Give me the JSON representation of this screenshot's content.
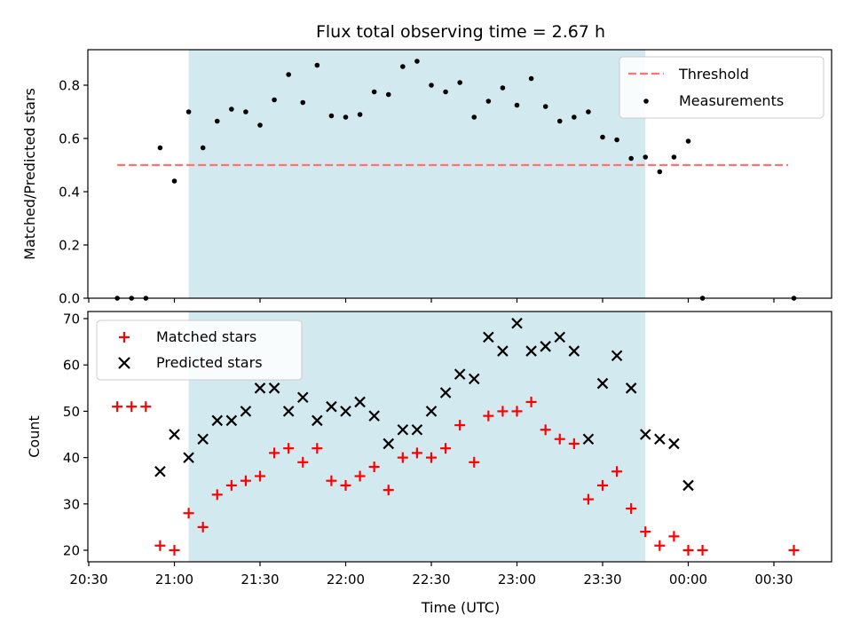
{
  "chart_data": [
    {
      "type": "scatter",
      "title": "Flux total observing time = 2.67 h",
      "xlabel": "",
      "ylabel": "Matched/Predicted stars",
      "ylim": [
        0,
        0.93
      ],
      "ytick_labels": [
        "0.0",
        "0.2",
        "0.4",
        "0.6",
        "0.8"
      ],
      "shaded_interval": [
        "21:05",
        "23:45"
      ],
      "shade_color": "#d3e9f0",
      "threshold": {
        "name": "Threshold",
        "value": 0.5,
        "x_range": [
          "20:40",
          "00:35"
        ],
        "color": "#ff7272",
        "style": "dashed"
      },
      "series": [
        {
          "name": "Measurements",
          "color": "#000000",
          "marker": "dot",
          "x": [
            "20:40",
            "20:45",
            "20:50",
            "20:55",
            "21:00",
            "21:05",
            "21:10",
            "21:15",
            "21:20",
            "21:25",
            "21:30",
            "21:35",
            "21:40",
            "21:45",
            "21:50",
            "21:55",
            "22:00",
            "22:05",
            "22:10",
            "22:15",
            "22:20",
            "22:25",
            "22:30",
            "22:35",
            "22:40",
            "22:45",
            "22:50",
            "22:55",
            "23:00",
            "23:05",
            "23:10",
            "23:15",
            "23:20",
            "23:25",
            "23:30",
            "23:35",
            "23:40",
            "23:45",
            "23:50",
            "23:55",
            "00:00",
            "00:05",
            "00:37"
          ],
          "y": [
            0,
            0,
            0,
            0.565,
            0.44,
            0.7,
            0.565,
            0.665,
            0.71,
            0.7,
            0.65,
            0.745,
            0.84,
            0.735,
            0.875,
            0.685,
            0.68,
            0.69,
            0.775,
            0.765,
            0.87,
            0.89,
            0.8,
            0.775,
            0.81,
            0.68,
            0.74,
            0.79,
            0.725,
            0.825,
            0.72,
            0.665,
            0.68,
            0.7,
            0.605,
            0.595,
            0.525,
            0.53,
            0.475,
            0.53,
            0.59,
            0,
            0
          ]
        }
      ],
      "legend": {
        "position": "upper right",
        "entries": [
          "Threshold",
          "Measurements"
        ]
      }
    },
    {
      "type": "scatter",
      "title": "",
      "xlabel": "Time (UTC)",
      "ylabel": "Count",
      "ylim": [
        17.6,
        71
      ],
      "ytick_labels": [
        "20",
        "30",
        "40",
        "50",
        "60",
        "70"
      ],
      "xtick_labels": [
        "20:30",
        "21:00",
        "21:30",
        "22:00",
        "22:30",
        "23:00",
        "23:30",
        "00:00",
        "00:30"
      ],
      "shaded_interval": [
        "21:05",
        "23:45"
      ],
      "shade_color": "#d3e9f0",
      "series": [
        {
          "name": "Matched stars",
          "color": "#ff0000",
          "marker": "plus",
          "x": [
            "20:40",
            "20:45",
            "20:50",
            "20:55",
            "21:00",
            "21:05",
            "21:10",
            "21:15",
            "21:20",
            "21:25",
            "21:30",
            "21:35",
            "21:40",
            "21:45",
            "21:50",
            "21:55",
            "22:00",
            "22:05",
            "22:10",
            "22:15",
            "22:20",
            "22:25",
            "22:30",
            "22:35",
            "22:40",
            "22:45",
            "22:50",
            "22:55",
            "23:00",
            "23:05",
            "23:10",
            "23:15",
            "23:20",
            "23:25",
            "23:30",
            "23:35",
            "23:40",
            "23:45",
            "23:50",
            "23:55",
            "00:00",
            "00:05",
            "00:37"
          ],
          "y": [
            51,
            51,
            51,
            21,
            20,
            28,
            25,
            32,
            34,
            35,
            36,
            41,
            42,
            39,
            42,
            35,
            34,
            36,
            38,
            33,
            40,
            41,
            40,
            42,
            47,
            39,
            49,
            50,
            50,
            52,
            46,
            44,
            43,
            31,
            34,
            37,
            29,
            24,
            21,
            23,
            20,
            20,
            20
          ]
        },
        {
          "name": "Predicted stars",
          "color": "#000000",
          "marker": "x",
          "x": [
            "20:55",
            "21:00",
            "21:05",
            "21:10",
            "21:15",
            "21:20",
            "21:25",
            "21:30",
            "21:35",
            "21:40",
            "21:45",
            "21:50",
            "21:55",
            "22:00",
            "22:05",
            "22:10",
            "22:15",
            "22:20",
            "22:25",
            "22:30",
            "22:35",
            "22:40",
            "22:45",
            "22:50",
            "22:55",
            "23:00",
            "23:05",
            "23:10",
            "23:15",
            "23:20",
            "23:25",
            "23:30",
            "23:35",
            "23:40",
            "23:45",
            "23:50",
            "23:55",
            "00:00"
          ],
          "y": [
            37,
            45,
            40,
            44,
            48,
            48,
            50,
            55,
            55,
            50,
            53,
            48,
            51,
            50,
            52,
            49,
            43,
            46,
            46,
            50,
            54,
            58,
            57,
            66,
            63,
            69,
            63,
            64,
            66,
            63,
            44,
            56,
            62,
            55,
            45,
            44,
            43,
            34
          ]
        }
      ],
      "legend": {
        "position": "upper left",
        "entries": [
          "Matched stars",
          "Predicted stars"
        ]
      }
    }
  ]
}
